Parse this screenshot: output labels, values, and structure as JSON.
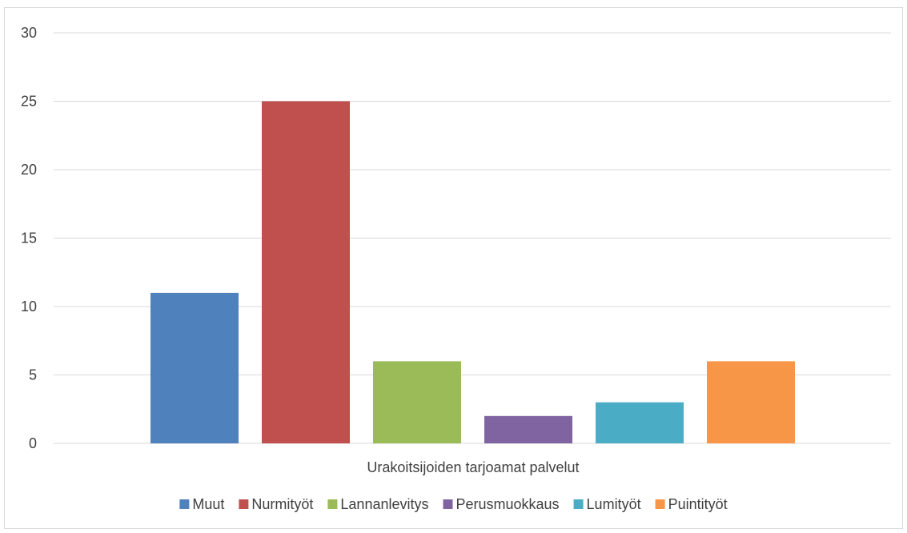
{
  "chart_data": {
    "type": "bar",
    "categories": [
      "Urakoitsijoiden tarjoamat palvelut"
    ],
    "series": [
      {
        "name": "Muut",
        "values": [
          11
        ],
        "color": "#4f81bd"
      },
      {
        "name": "Nurmityöt",
        "values": [
          25
        ],
        "color": "#c0504d"
      },
      {
        "name": "Lannanlevitys",
        "values": [
          6
        ],
        "color": "#9bbb59"
      },
      {
        "name": "Perusmuokkaus",
        "values": [
          2
        ],
        "color": "#8064a2"
      },
      {
        "name": "Lumityöt",
        "values": [
          3
        ],
        "color": "#4bacc6"
      },
      {
        "name": "Puintityöt",
        "values": [
          6
        ],
        "color": "#f79646"
      }
    ],
    "ylim": [
      0,
      30
    ],
    "yticks": [
      "0",
      "5",
      "10",
      "15",
      "20",
      "25",
      "30"
    ],
    "grid": true,
    "legend_position": "bottom"
  }
}
